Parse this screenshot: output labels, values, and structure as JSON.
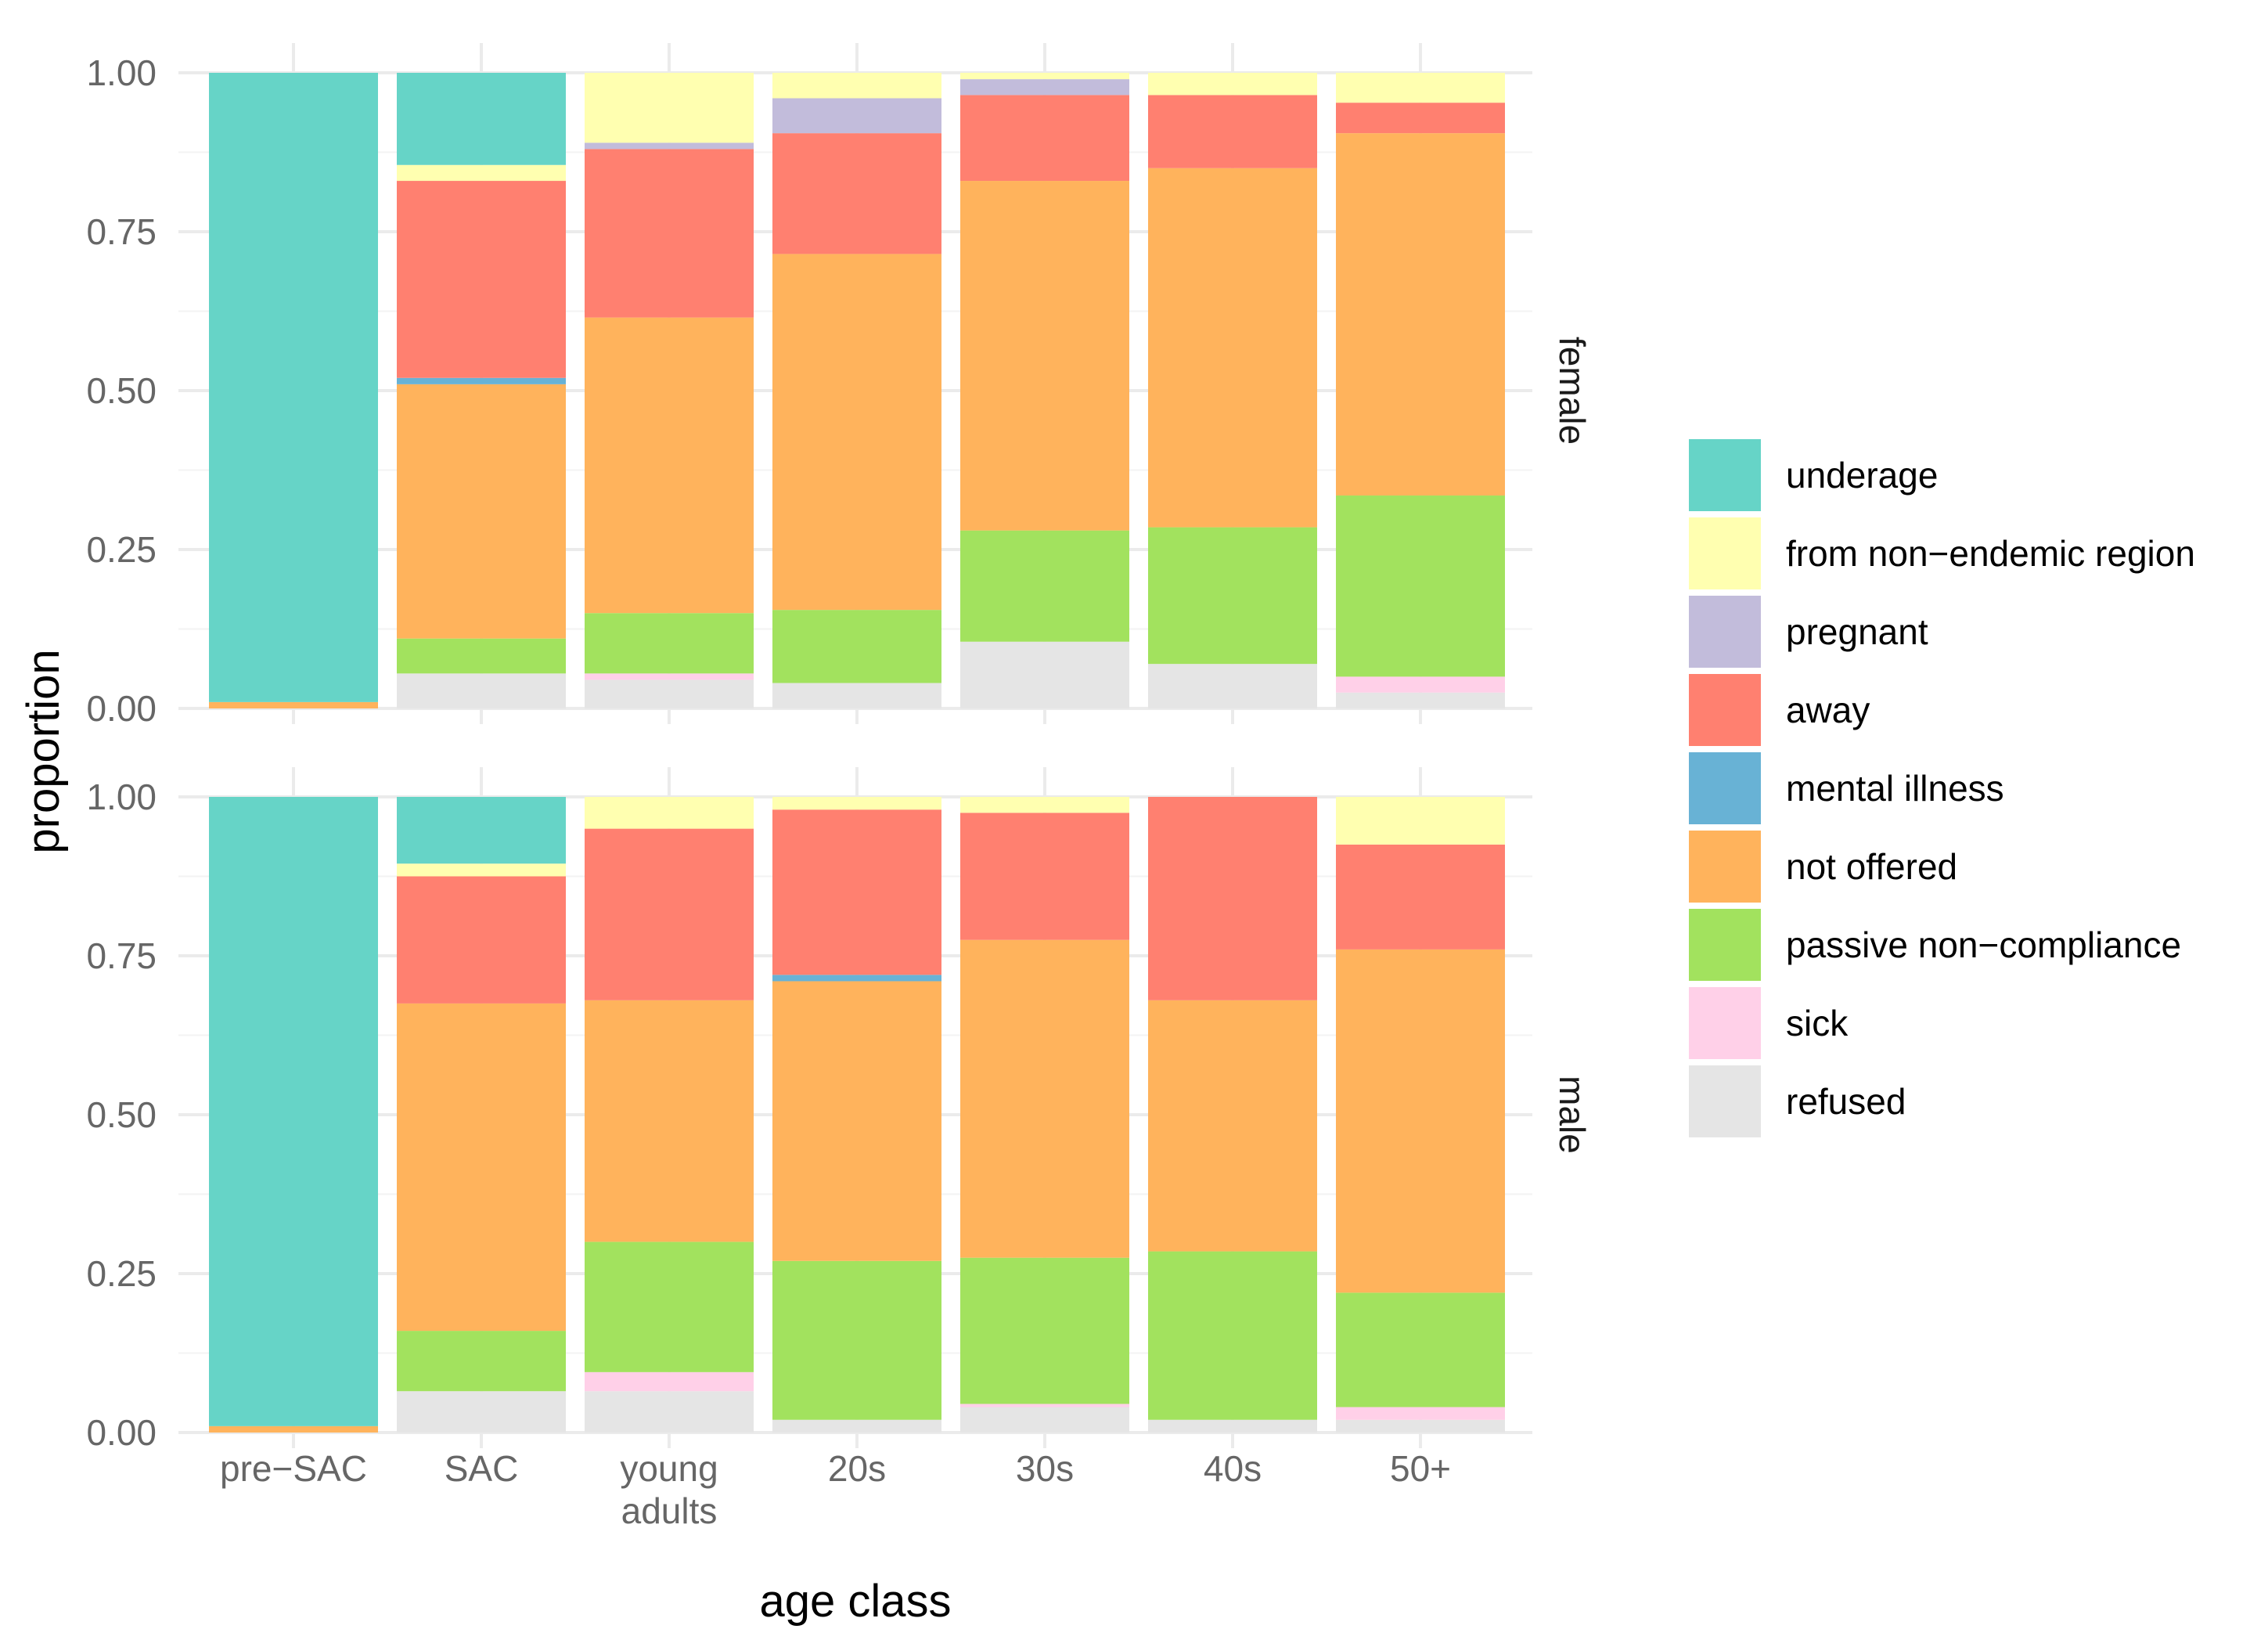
{
  "chart_data": {
    "type": "bar",
    "stacked": true,
    "xlabel": "age class",
    "ylabel": "proportion",
    "ylim": [
      0,
      1
    ],
    "yticks": [
      "0.00",
      "0.25",
      "0.50",
      "0.75",
      "1.00"
    ],
    "categories": [
      "pre−SAC",
      "SAC",
      "young adults",
      "20s",
      "30s",
      "40s",
      "50+"
    ],
    "legend": [
      {
        "name": "underage",
        "color": "#66D4C7"
      },
      {
        "name": "from non−endemic region",
        "color": "#FFFFB0"
      },
      {
        "name": "pregnant",
        "color": "#C2BCDB"
      },
      {
        "name": "away",
        "color": "#FF8070"
      },
      {
        "name": "mental illness",
        "color": "#68B2D5"
      },
      {
        "name": "not offered",
        "color": "#FFB35C"
      },
      {
        "name": "passive non−compliance",
        "color": "#A2E25E"
      },
      {
        "name": "sick",
        "color": "#FFD0E8"
      },
      {
        "name": "refused",
        "color": "#E5E5E5"
      }
    ],
    "stack_order_bottom_to_top": [
      "refused",
      "sick",
      "passive non−compliance",
      "not offered",
      "mental illness",
      "away",
      "pregnant",
      "from non−endemic region",
      "underage"
    ],
    "panels": [
      {
        "name": "female",
        "bars": {
          "pre−SAC": {
            "refused": 0,
            "sick": 0,
            "passive non−compliance": 0,
            "not offered": 0.01,
            "mental illness": 0,
            "away": 0,
            "pregnant": 0,
            "from non−endemic region": 0,
            "underage": 0.99
          },
          "SAC": {
            "refused": 0.055,
            "sick": 0,
            "passive non−compliance": 0.055,
            "not offered": 0.4,
            "mental illness": 0.01,
            "away": 0.31,
            "pregnant": 0,
            "from non−endemic region": 0.025,
            "underage": 0.145
          },
          "young adults": {
            "refused": 0.045,
            "sick": 0.01,
            "passive non−compliance": 0.095,
            "not offered": 0.465,
            "mental illness": 0,
            "away": 0.265,
            "pregnant": 0.01,
            "from non−endemic region": 0.11,
            "underage": 0
          },
          "20s": {
            "refused": 0.04,
            "sick": 0,
            "passive non−compliance": 0.115,
            "not offered": 0.56,
            "mental illness": 0,
            "away": 0.19,
            "pregnant": 0.055,
            "from non−endemic region": 0.04,
            "underage": 0
          },
          "30s": {
            "refused": 0.105,
            "sick": 0,
            "passive non−compliance": 0.175,
            "not offered": 0.55,
            "mental illness": 0,
            "away": 0.135,
            "pregnant": 0.025,
            "from non−endemic region": 0.01,
            "underage": 0
          },
          "40s": {
            "refused": 0.07,
            "sick": 0,
            "passive non−compliance": 0.215,
            "not offered": 0.565,
            "mental illness": 0,
            "away": 0.115,
            "pregnant": 0,
            "from non−endemic region": 0.035,
            "underage": 0
          },
          "50+": {
            "refused": 0.025,
            "sick": 0.025,
            "passive non−compliance": 0.285,
            "not offered": 0.57,
            "mental illness": 0,
            "away": 0.048,
            "pregnant": 0,
            "from non−endemic region": 0.047,
            "underage": 0
          }
        }
      },
      {
        "name": "male",
        "bars": {
          "pre−SAC": {
            "refused": 0,
            "sick": 0,
            "passive non−compliance": 0,
            "not offered": 0.01,
            "mental illness": 0,
            "away": 0,
            "pregnant": 0,
            "from non−endemic region": 0,
            "underage": 0.99
          },
          "SAC": {
            "refused": 0.065,
            "sick": 0,
            "passive non−compliance": 0.095,
            "not offered": 0.515,
            "mental illness": 0,
            "away": 0.2,
            "pregnant": 0,
            "from non−endemic region": 0.02,
            "underage": 0.105
          },
          "young adults": {
            "refused": 0.065,
            "sick": 0.03,
            "passive non−compliance": 0.205,
            "not offered": 0.38,
            "mental illness": 0,
            "away": 0.27,
            "pregnant": 0,
            "from non−endemic region": 0.05,
            "underage": 0
          },
          "20s": {
            "refused": 0.02,
            "sick": 0,
            "passive non−compliance": 0.25,
            "not offered": 0.44,
            "mental illness": 0.01,
            "away": 0.26,
            "pregnant": 0,
            "from non−endemic region": 0.02,
            "underage": 0
          },
          "30s": {
            "refused": 0.04,
            "sick": 0.005,
            "passive non−compliance": 0.23,
            "not offered": 0.5,
            "mental illness": 0,
            "away": 0.2,
            "pregnant": 0,
            "from non−endemic region": 0.025,
            "underage": 0
          },
          "40s": {
            "refused": 0.02,
            "sick": 0,
            "passive non−compliance": 0.265,
            "not offered": 0.395,
            "mental illness": 0,
            "away": 0.32,
            "pregnant": 0,
            "from non−endemic region": 0,
            "underage": 0
          },
          "50+": {
            "refused": 0.02,
            "sick": 0.02,
            "passive non−compliance": 0.18,
            "not offered": 0.54,
            "mental illness": 0,
            "away": 0.165,
            "pregnant": 0,
            "from non−endemic region": 0.075,
            "underage": 0
          }
        }
      }
    ]
  }
}
